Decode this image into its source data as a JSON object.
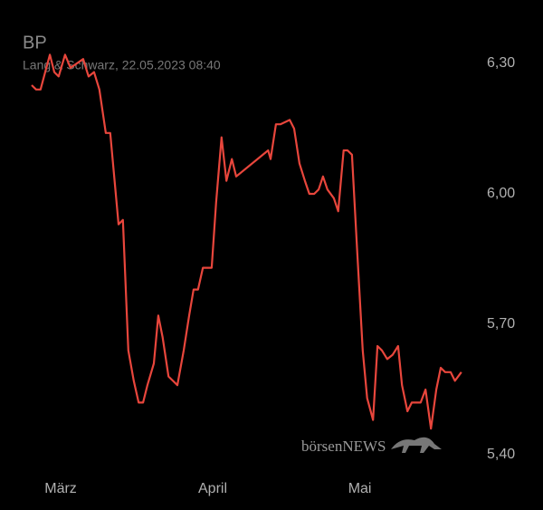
{
  "chart_data": {
    "type": "line",
    "title": "BP",
    "subtitle": "Lang & Schwarz, 22.05.2023 08:40",
    "watermark": "börsenNEWS",
    "x": [
      -5.9,
      -5.0,
      -4.1,
      -2.2,
      -1.3,
      -0.4,
      0.9,
      2.0,
      3.3,
      4.6,
      5.7,
      6.8,
      7.9,
      9.2,
      10.1,
      11.8,
      12.7,
      13.8,
      14.9,
      15.9,
      16.8,
      17.7,
      19.0,
      19.9,
      20.8,
      22.0,
      22.9,
      23.8,
      25.1,
      26.2,
      27.1,
      28.0,
      29.0,
      29.9,
      30.8,
      31.7,
      32.8,
      33.8,
      34.9,
      35.8,
      42.3,
      42.8,
      43.9,
      44.8,
      46.7,
      47.6,
      48.7,
      49.8,
      50.7,
      51.7,
      52.6,
      53.5,
      54.4,
      55.7,
      56.6,
      57.7,
      58.5,
      59.4,
      60.5,
      61.6,
      62.5,
      63.7,
      64.6,
      65.5,
      66.6,
      67.7,
      68.8,
      69.6,
      70.7,
      71.6,
      72.5,
      73.4,
      74.4,
      75.5,
      76.6,
      77.5,
      78.4,
      79.5,
      80.4,
      81.7
    ],
    "series": [
      {
        "name": "BP",
        "color": "#e8463c",
        "values": [
          6.25,
          6.24,
          6.24,
          6.32,
          6.28,
          6.27,
          6.32,
          6.29,
          6.3,
          6.31,
          6.27,
          6.28,
          6.24,
          6.14,
          6.14,
          5.93,
          5.94,
          5.64,
          5.57,
          5.52,
          5.52,
          5.56,
          5.61,
          5.72,
          5.67,
          5.58,
          5.57,
          5.56,
          5.64,
          5.72,
          5.78,
          5.78,
          5.83,
          5.83,
          5.83,
          5.98,
          6.13,
          6.03,
          6.08,
          6.04,
          6.1,
          6.08,
          6.16,
          6.16,
          6.17,
          6.15,
          6.07,
          6.03,
          6.0,
          6.0,
          6.01,
          6.04,
          6.01,
          5.99,
          5.96,
          6.1,
          6.1,
          6.09,
          5.86,
          5.64,
          5.53,
          5.48,
          5.65,
          5.64,
          5.62,
          5.63,
          5.65,
          5.56,
          5.5,
          5.52,
          5.52,
          5.52,
          5.55,
          5.46,
          5.55,
          5.6,
          5.59,
          5.59,
          5.57,
          5.59
        ]
      }
    ],
    "xlim": [
      -6,
      82
    ],
    "xticks": [
      {
        "value": 0,
        "label": "März"
      },
      {
        "value": 31,
        "label": "April"
      },
      {
        "value": 61,
        "label": "Mai"
      }
    ],
    "ylim": [
      5.35,
      6.4
    ],
    "yticks": [
      {
        "value": 5.4,
        "label": "5,40"
      },
      {
        "value": 5.7,
        "label": "5,70"
      },
      {
        "value": 6.0,
        "label": "6,00"
      },
      {
        "value": 6.3,
        "label": "6,30"
      }
    ],
    "grid": false
  }
}
